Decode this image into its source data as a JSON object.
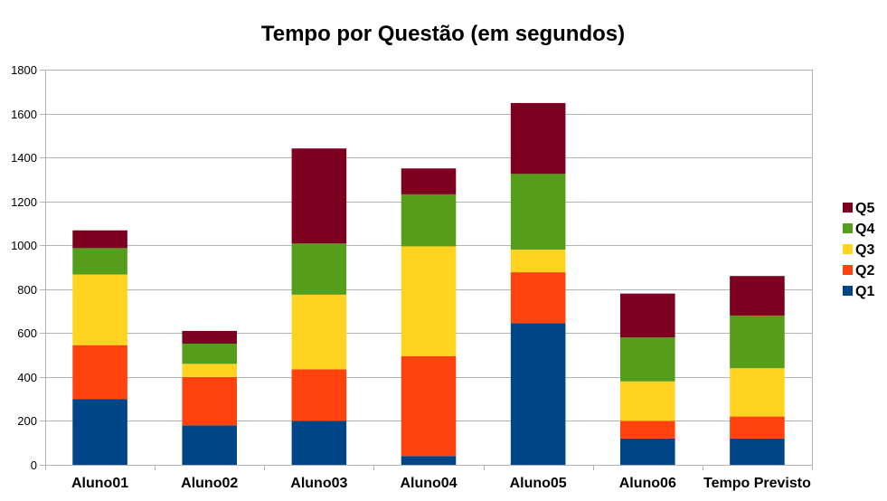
{
  "chart_data": {
    "type": "bar",
    "stacked": true,
    "title": "Tempo por Questão (em segundos)",
    "xlabel": "",
    "ylabel": "",
    "ylim": [
      0,
      1800
    ],
    "yticks": [
      0,
      200,
      400,
      600,
      800,
      1000,
      1200,
      1400,
      1600,
      1800
    ],
    "grid": true,
    "legend_position": "right",
    "categories": [
      "Aluno01",
      "Aluno02",
      "Aluno03",
      "Aluno04",
      "Aluno05",
      "Aluno06",
      "Tempo Previsto"
    ],
    "series": [
      {
        "name": "Q1",
        "color": "#004586",
        "values": [
          300,
          180,
          200,
          40,
          645,
          120,
          120
        ]
      },
      {
        "name": "Q2",
        "color": "#ff420e",
        "values": [
          245,
          220,
          235,
          455,
          232,
          80,
          100
        ]
      },
      {
        "name": "Q3",
        "color": "#ffd320",
        "values": [
          322,
          60,
          340,
          500,
          103,
          180,
          220
        ]
      },
      {
        "name": "Q4",
        "color": "#579d1c",
        "values": [
          120,
          92,
          233,
          237,
          345,
          200,
          240
        ]
      },
      {
        "name": "Q5",
        "color": "#7e0021",
        "values": [
          81,
          58,
          433,
          118,
          323,
          200,
          180
        ]
      }
    ]
  }
}
